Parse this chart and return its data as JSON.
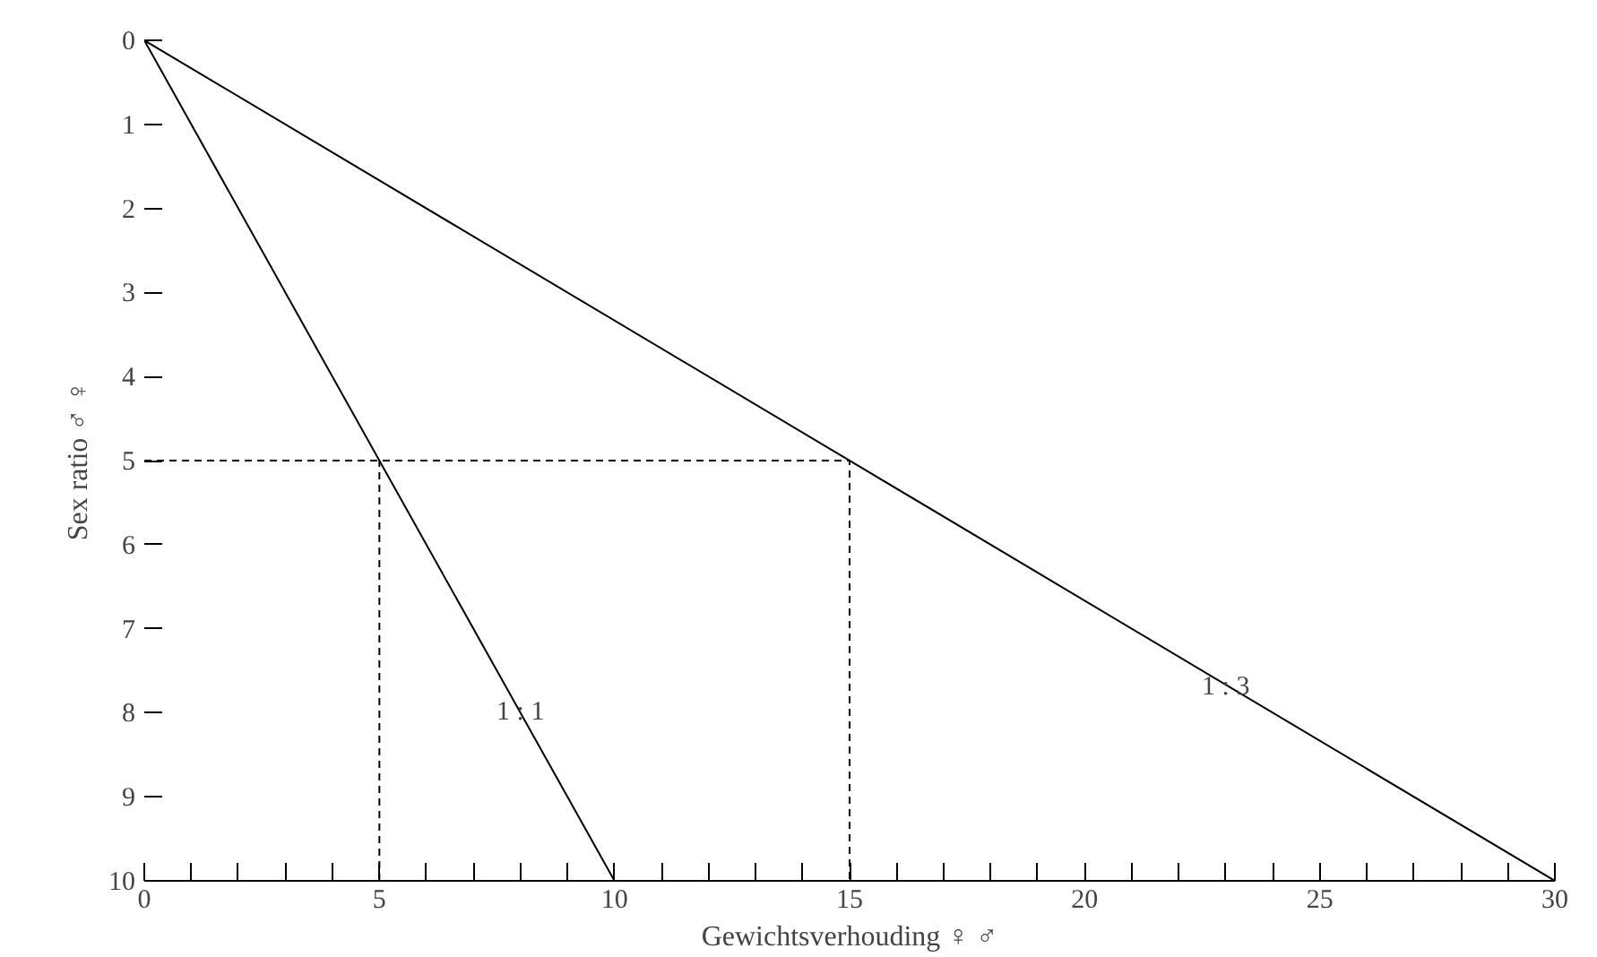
{
  "chart_data": {
    "type": "line",
    "xlabel": "Gewichtsverhouding ♀ ♂",
    "ylabel": "Sex ratio ♂ ♀",
    "xlim": [
      0,
      30
    ],
    "ylim": [
      10,
      0
    ],
    "xticks": [
      0,
      {
        "value": 1,
        "label": null
      },
      {
        "value": 2,
        "label": null
      },
      {
        "value": 3,
        "label": null
      },
      {
        "value": 4,
        "label": null
      },
      5,
      {
        "value": 6,
        "label": null
      },
      {
        "value": 7,
        "label": null
      },
      {
        "value": 8,
        "label": null
      },
      {
        "value": 9,
        "label": null
      },
      10,
      {
        "value": 11,
        "label": null
      },
      {
        "value": 12,
        "label": null
      },
      {
        "value": 13,
        "label": null
      },
      {
        "value": 14,
        "label": null
      },
      15,
      {
        "value": 16,
        "label": null
      },
      {
        "value": 17,
        "label": null
      },
      {
        "value": 18,
        "label": null
      },
      {
        "value": 19,
        "label": null
      },
      20,
      {
        "value": 21,
        "label": null
      },
      {
        "value": 22,
        "label": null
      },
      {
        "value": 23,
        "label": null
      },
      {
        "value": 24,
        "label": null
      },
      25,
      {
        "value": 26,
        "label": null
      },
      {
        "value": 27,
        "label": null
      },
      {
        "value": 28,
        "label": null
      },
      {
        "value": 29,
        "label": null
      },
      30
    ],
    "yticks": [
      0,
      1,
      2,
      3,
      4,
      5,
      6,
      7,
      8,
      9,
      10
    ],
    "grid": false,
    "marker": "none",
    "series": [
      {
        "color": "#000000",
        "x": [
          0,
          10
        ],
        "values": [
          0,
          10
        ],
        "line_style": "solid"
      },
      {
        "color": "#000000",
        "x": [
          0,
          30
        ],
        "values": [
          0,
          10
        ],
        "line_style": "solid"
      },
      {
        "color": "#000000",
        "x": [
          0,
          15,
          15
        ],
        "values": [
          5,
          5,
          10
        ],
        "line_style": "dashed"
      },
      {
        "color": "#000000",
        "x": [
          5,
          5
        ],
        "values": [
          10,
          5
        ],
        "line_style": "dashed"
      }
    ],
    "annotations": [
      {
        "text": "1 : 1",
        "x": 8,
        "y": 8
      },
      {
        "text": "1 : 3",
        "x": 23,
        "y": 7.7
      }
    ]
  }
}
